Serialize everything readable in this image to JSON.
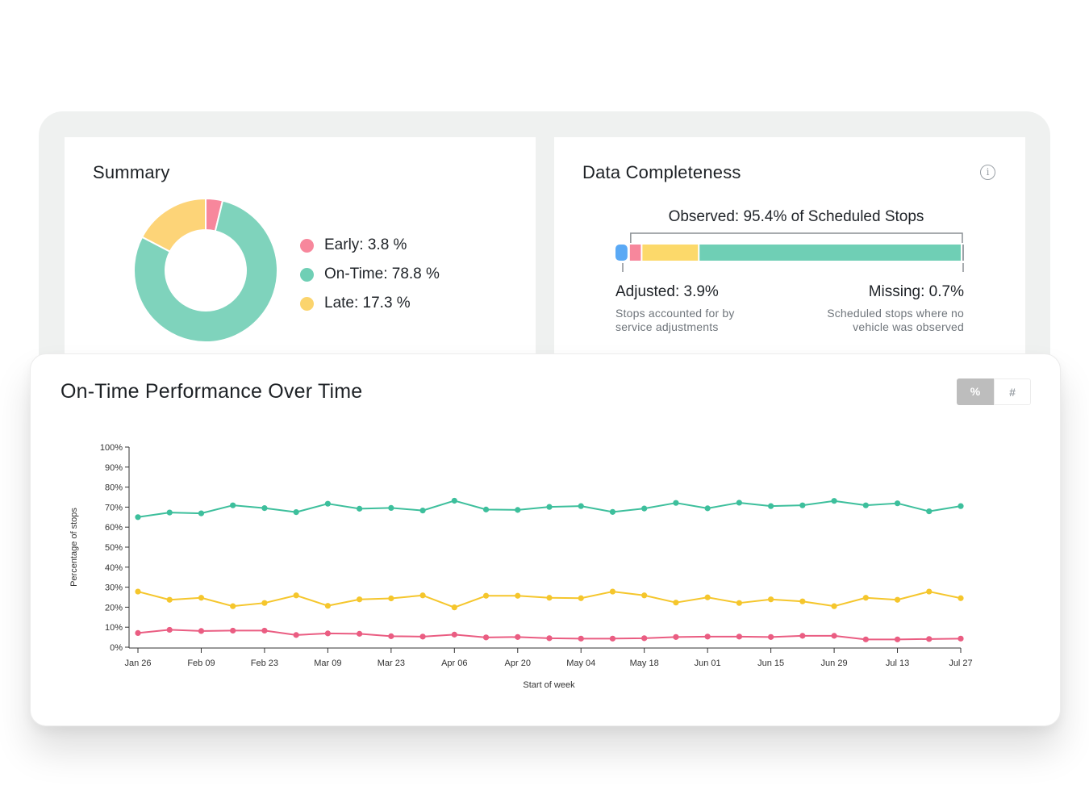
{
  "summary": {
    "title": "Summary",
    "legend": [
      {
        "label": "Early: 3.8 %",
        "color": "#f7879c"
      },
      {
        "label": "On-Time: 78.8 %",
        "color": "#6fcfb5"
      },
      {
        "label": "Late: 17.3 %",
        "color": "#fbd46d"
      }
    ],
    "donut": [
      {
        "name": "Early",
        "value": 3.8,
        "color": "#f7879c"
      },
      {
        "name": "On-Time",
        "value": 78.8,
        "color": "#7fd3bc"
      },
      {
        "name": "Late",
        "value": 17.3,
        "color": "#fdd478"
      }
    ]
  },
  "completeness": {
    "title": "Data Completeness",
    "info_icon": "info-icon",
    "observed_label": "Observed: 95.4% of Scheduled Stops",
    "bar_segments": [
      {
        "name": "Adjusted",
        "value": 3.9,
        "color": "#5aa9f5"
      },
      {
        "name": "Early",
        "value": 3.6,
        "color": "#f7879c"
      },
      {
        "name": "Late",
        "value": 16.4,
        "color": "#fcd96a"
      },
      {
        "name": "On-Time",
        "value": 75.4,
        "color": "#6fcfb5"
      },
      {
        "name": "Missing",
        "value": 0.7,
        "color": "#9aa0a6"
      }
    ],
    "adjusted_label": "Adjusted: 3.9%",
    "adjusted_desc_1": "Stops accounted for by",
    "adjusted_desc_2": "service adjustments",
    "missing_label": "Missing: 0.7%",
    "missing_desc_1": "Scheduled stops where no",
    "missing_desc_2": "vehicle was observed"
  },
  "performance": {
    "title": "On-Time Performance Over Time",
    "toggle_percent": "%",
    "toggle_count": "#"
  },
  "chart_data": {
    "type": "line",
    "xlabel": "Start of week",
    "ylabel": "Percentage of stops",
    "ylim": [
      0,
      100
    ],
    "yticks": [
      "0%",
      "10%",
      "20%",
      "30%",
      "40%",
      "50%",
      "60%",
      "70%",
      "80%",
      "90%",
      "100%"
    ],
    "x_tick_labels": [
      "Jan 26",
      "Feb 09",
      "Feb 23",
      "Mar 09",
      "Mar 23",
      "Apr 06",
      "Apr 20",
      "May 04",
      "May 18",
      "Jun 01",
      "Jun 15",
      "Jun 29",
      "Jul 13",
      "Jul 27"
    ],
    "point_count": 27,
    "series": [
      {
        "color": "#3dbf9c",
        "values": [
          65,
          67.3,
          66.9,
          70.9,
          69.5,
          67.5,
          71.7,
          69.2,
          69.6,
          68.3,
          73.2,
          68.8,
          68.6,
          70.1,
          70.5,
          67.6,
          69.3,
          72.1,
          69.4,
          72.2,
          70.5,
          70.9,
          73.1,
          70.9,
          71.9,
          67.9,
          70.5
        ]
      },
      {
        "color": "#f5c62c",
        "values": [
          27.8,
          23.7,
          24.7,
          20.5,
          22.1,
          25.9,
          20.7,
          23.9,
          24.4,
          25.9,
          19.9,
          25.7,
          25.7,
          24.7,
          24.5,
          27.8,
          25.9,
          22.3,
          24.9,
          22.1,
          23.9,
          22.9,
          20.5,
          24.7,
          23.7,
          27.8,
          24.5
        ]
      },
      {
        "color": "#ea5d82",
        "values": [
          7.1,
          8.7,
          8.1,
          8.3,
          8.3,
          6.1,
          6.9,
          6.7,
          5.5,
          5.3,
          6.3,
          4.9,
          5.1,
          4.5,
          4.3,
          4.3,
          4.5,
          5.1,
          5.3,
          5.3,
          5.1,
          5.7,
          5.7,
          3.9,
          3.9,
          4.1,
          4.3
        ]
      }
    ]
  }
}
